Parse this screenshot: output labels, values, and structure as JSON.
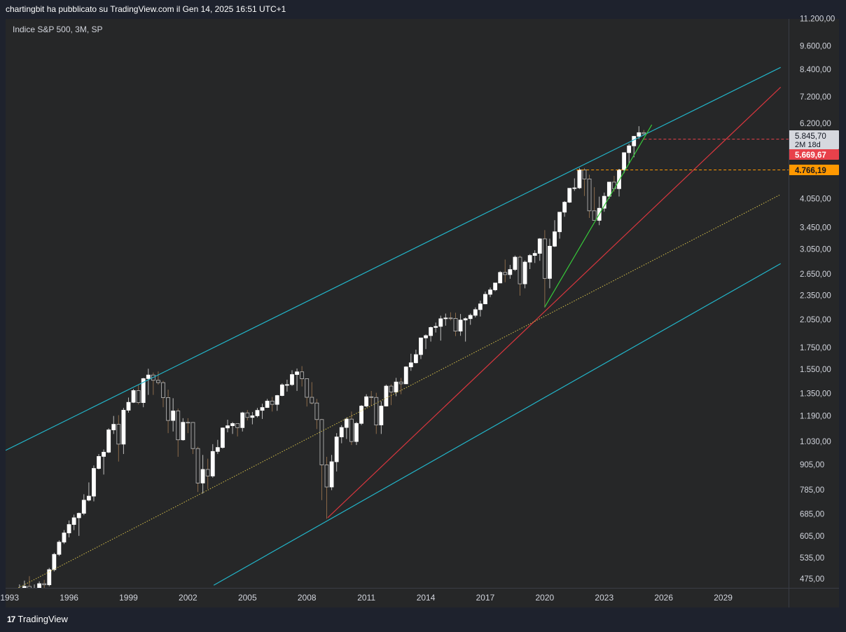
{
  "header": {
    "published_text": "chartingbit ha pubblicato su TradingView.com il Gen 14, 2025 16:51 UTC+1"
  },
  "legend": {
    "symbol_text": "Indice S&P 500, 3M, SP"
  },
  "footer": {
    "logo_text": "TradingView",
    "logo_mark": "17"
  },
  "colors": {
    "background": "#262728",
    "up_candle": "#ffffff",
    "down_candle": "#262728",
    "wick": "#8a6a4a",
    "channel": "#22b5c9",
    "red_trend": "#d9363e",
    "green_trend": "#37c93a",
    "dotted_mid": "#d6c04a"
  },
  "chart_data": {
    "type": "candlestick",
    "title": "Indice S&P 500, 3M, SP",
    "x_tick_labels": [
      "1993",
      "1996",
      "1999",
      "2002",
      "2005",
      "2008",
      "2011",
      "2014",
      "2017",
      "2020",
      "2023",
      "2026",
      "2029"
    ],
    "y_tick_labels": [
      "11.200,00",
      "9.600,00",
      "8.400,00",
      "7.200,00",
      "6.200,00",
      "4.050,00",
      "3.450,00",
      "3.050,00",
      "2.650,00",
      "2.350,00",
      "2.050,00",
      "1.750,00",
      "1.550,00",
      "1.350,00",
      "1.190,00",
      "1.030,00",
      "905,00",
      "785,00",
      "685,00",
      "605,00",
      "535,00",
      "475,00"
    ],
    "y_scale": "log",
    "x_range": [
      1992.8,
      2032.3
    ],
    "price_labels": [
      {
        "value": "5.845,70",
        "sub": "2M 18d",
        "style": "last"
      },
      {
        "value": "5.669,67",
        "style": "red"
      },
      {
        "value": "4.766,19",
        "style": "orange"
      }
    ],
    "horizontal_levels": [
      {
        "price": 5669.67,
        "color": "red",
        "style": "dashed"
      },
      {
        "price": 4766.19,
        "color": "orange",
        "style": "dashed"
      }
    ],
    "trend_lines": [
      {
        "name": "",
        "color": "cyan",
        "p1": [
          1992.8,
          980
        ],
        "p2": [
          2031.9,
          8500
        ]
      },
      {
        "name": "",
        "color": "cyan",
        "p1": [
          2003.3,
          458
        ],
        "p2": [
          2031.9,
          2810
        ]
      },
      {
        "name": "",
        "color": "red",
        "p1": [
          2009.05,
          670
        ],
        "p2": [
          2031.9,
          7600
        ]
      },
      {
        "name": "",
        "color": "green",
        "p1": [
          2020.0,
          2200
        ],
        "p2": [
          2025.4,
          6150
        ]
      },
      {
        "name": "",
        "color": "dotted-yellow",
        "p1": [
          1993.0,
          440
        ],
        "p2": [
          2031.9,
          4150
        ]
      }
    ],
    "series": [
      {
        "t": 1993.5,
        "o": 440,
        "h": 460,
        "l": 436,
        "c": 448
      },
      {
        "t": 1993.75,
        "o": 448,
        "h": 470,
        "l": 445,
        "c": 455
      },
      {
        "t": 1994.0,
        "o": 455,
        "h": 482,
        "l": 435,
        "c": 438
      },
      {
        "t": 1994.25,
        "o": 438,
        "h": 460,
        "l": 436,
        "c": 445
      },
      {
        "t": 1994.5,
        "o": 445,
        "h": 468,
        "l": 440,
        "c": 462
      },
      {
        "t": 1994.75,
        "o": 462,
        "h": 472,
        "l": 445,
        "c": 459
      },
      {
        "t": 1995.0,
        "o": 459,
        "h": 505,
        "l": 455,
        "c": 500
      },
      {
        "t": 1995.25,
        "o": 500,
        "h": 550,
        "l": 495,
        "c": 545
      },
      {
        "t": 1995.5,
        "o": 545,
        "h": 590,
        "l": 540,
        "c": 584
      },
      {
        "t": 1995.75,
        "o": 584,
        "h": 625,
        "l": 578,
        "c": 615
      },
      {
        "t": 1996.0,
        "o": 615,
        "h": 660,
        "l": 600,
        "c": 645
      },
      {
        "t": 1996.25,
        "o": 645,
        "h": 682,
        "l": 625,
        "c": 670
      },
      {
        "t": 1996.5,
        "o": 670,
        "h": 690,
        "l": 605,
        "c": 687
      },
      {
        "t": 1996.75,
        "o": 687,
        "h": 765,
        "l": 680,
        "c": 740
      },
      {
        "t": 1997.0,
        "o": 740,
        "h": 818,
        "l": 735,
        "c": 757
      },
      {
        "t": 1997.25,
        "o": 757,
        "h": 900,
        "l": 735,
        "c": 885
      },
      {
        "t": 1997.5,
        "o": 885,
        "h": 960,
        "l": 880,
        "c": 947
      },
      {
        "t": 1997.75,
        "o": 947,
        "h": 985,
        "l": 855,
        "c": 970
      },
      {
        "t": 1998.0,
        "o": 970,
        "h": 1110,
        "l": 965,
        "c": 1100
      },
      {
        "t": 1998.25,
        "o": 1100,
        "h": 1190,
        "l": 1075,
        "c": 1135
      },
      {
        "t": 1998.5,
        "o": 1135,
        "h": 1195,
        "l": 920,
        "c": 1015
      },
      {
        "t": 1998.75,
        "o": 1015,
        "h": 1245,
        "l": 960,
        "c": 1229
      },
      {
        "t": 1999.0,
        "o": 1229,
        "h": 1320,
        "l": 1212,
        "c": 1285
      },
      {
        "t": 1999.25,
        "o": 1285,
        "h": 1385,
        "l": 1280,
        "c": 1373
      },
      {
        "t": 1999.5,
        "o": 1373,
        "h": 1420,
        "l": 1270,
        "c": 1283
      },
      {
        "t": 1999.75,
        "o": 1283,
        "h": 1475,
        "l": 1250,
        "c": 1469
      },
      {
        "t": 2000.0,
        "o": 1469,
        "h": 1553,
        "l": 1340,
        "c": 1499
      },
      {
        "t": 2000.25,
        "o": 1499,
        "h": 1520,
        "l": 1340,
        "c": 1455
      },
      {
        "t": 2000.5,
        "o": 1455,
        "h": 1530,
        "l": 1420,
        "c": 1436
      },
      {
        "t": 2000.75,
        "o": 1436,
        "h": 1450,
        "l": 1250,
        "c": 1320
      },
      {
        "t": 2001.0,
        "o": 1320,
        "h": 1380,
        "l": 1080,
        "c": 1160
      },
      {
        "t": 2001.25,
        "o": 1160,
        "h": 1315,
        "l": 1090,
        "c": 1224
      },
      {
        "t": 2001.5,
        "o": 1224,
        "h": 1240,
        "l": 945,
        "c": 1040
      },
      {
        "t": 2001.75,
        "o": 1040,
        "h": 1175,
        "l": 1035,
        "c": 1148
      },
      {
        "t": 2002.0,
        "o": 1148,
        "h": 1175,
        "l": 1080,
        "c": 1147
      },
      {
        "t": 2002.25,
        "o": 1147,
        "h": 1150,
        "l": 960,
        "c": 990
      },
      {
        "t": 2002.5,
        "o": 990,
        "h": 1000,
        "l": 775,
        "c": 815
      },
      {
        "t": 2002.75,
        "o": 815,
        "h": 955,
        "l": 768,
        "c": 880
      },
      {
        "t": 2003.0,
        "o": 880,
        "h": 935,
        "l": 788,
        "c": 848
      },
      {
        "t": 2003.25,
        "o": 848,
        "h": 1015,
        "l": 840,
        "c": 974
      },
      {
        "t": 2003.5,
        "o": 974,
        "h": 1040,
        "l": 960,
        "c": 996
      },
      {
        "t": 2003.75,
        "o": 996,
        "h": 1115,
        "l": 990,
        "c": 1112
      },
      {
        "t": 2004.0,
        "o": 1112,
        "h": 1165,
        "l": 1085,
        "c": 1126
      },
      {
        "t": 2004.25,
        "o": 1126,
        "h": 1150,
        "l": 1075,
        "c": 1140
      },
      {
        "t": 2004.5,
        "o": 1140,
        "h": 1140,
        "l": 1060,
        "c": 1114
      },
      {
        "t": 2004.75,
        "o": 1114,
        "h": 1218,
        "l": 1090,
        "c": 1211
      },
      {
        "t": 2005.0,
        "o": 1211,
        "h": 1230,
        "l": 1160,
        "c": 1180
      },
      {
        "t": 2005.25,
        "o": 1180,
        "h": 1217,
        "l": 1135,
        "c": 1191
      },
      {
        "t": 2005.5,
        "o": 1191,
        "h": 1245,
        "l": 1180,
        "c": 1228
      },
      {
        "t": 2005.75,
        "o": 1228,
        "h": 1275,
        "l": 1170,
        "c": 1248
      },
      {
        "t": 2006.0,
        "o": 1248,
        "h": 1310,
        "l": 1245,
        "c": 1294
      },
      {
        "t": 2006.25,
        "o": 1294,
        "h": 1325,
        "l": 1220,
        "c": 1270
      },
      {
        "t": 2006.5,
        "o": 1270,
        "h": 1340,
        "l": 1225,
        "c": 1335
      },
      {
        "t": 2006.75,
        "o": 1335,
        "h": 1430,
        "l": 1330,
        "c": 1418
      },
      {
        "t": 2007.0,
        "o": 1418,
        "h": 1460,
        "l": 1365,
        "c": 1420
      },
      {
        "t": 2007.25,
        "o": 1420,
        "h": 1540,
        "l": 1410,
        "c": 1503
      },
      {
        "t": 2007.5,
        "o": 1503,
        "h": 1555,
        "l": 1370,
        "c": 1526
      },
      {
        "t": 2007.75,
        "o": 1526,
        "h": 1576,
        "l": 1405,
        "c": 1468
      },
      {
        "t": 2008.0,
        "o": 1468,
        "h": 1470,
        "l": 1255,
        "c": 1322
      },
      {
        "t": 2008.25,
        "o": 1322,
        "h": 1440,
        "l": 1270,
        "c": 1280
      },
      {
        "t": 2008.5,
        "o": 1280,
        "h": 1310,
        "l": 1105,
        "c": 1166
      },
      {
        "t": 2008.75,
        "o": 1166,
        "h": 1170,
        "l": 740,
        "c": 903
      },
      {
        "t": 2009.0,
        "o": 903,
        "h": 945,
        "l": 666,
        "c": 797
      },
      {
        "t": 2009.25,
        "o": 797,
        "h": 955,
        "l": 783,
        "c": 919
      },
      {
        "t": 2009.5,
        "o": 919,
        "h": 1080,
        "l": 870,
        "c": 1057
      },
      {
        "t": 2009.75,
        "o": 1057,
        "h": 1130,
        "l": 1020,
        "c": 1115
      },
      {
        "t": 2010.0,
        "o": 1115,
        "h": 1180,
        "l": 1045,
        "c": 1169
      },
      {
        "t": 2010.25,
        "o": 1169,
        "h": 1220,
        "l": 1010,
        "c": 1030
      },
      {
        "t": 2010.5,
        "o": 1030,
        "h": 1150,
        "l": 1010,
        "c": 1141
      },
      {
        "t": 2010.75,
        "o": 1141,
        "h": 1265,
        "l": 1130,
        "c": 1258
      },
      {
        "t": 2011.0,
        "o": 1258,
        "h": 1345,
        "l": 1250,
        "c": 1326
      },
      {
        "t": 2011.25,
        "o": 1326,
        "h": 1370,
        "l": 1260,
        "c": 1321
      },
      {
        "t": 2011.5,
        "o": 1321,
        "h": 1356,
        "l": 1075,
        "c": 1131
      },
      {
        "t": 2011.75,
        "o": 1131,
        "h": 1292,
        "l": 1075,
        "c": 1258
      },
      {
        "t": 2012.0,
        "o": 1258,
        "h": 1420,
        "l": 1255,
        "c": 1408
      },
      {
        "t": 2012.25,
        "o": 1408,
        "h": 1422,
        "l": 1265,
        "c": 1362
      },
      {
        "t": 2012.5,
        "o": 1362,
        "h": 1475,
        "l": 1330,
        "c": 1441
      },
      {
        "t": 2012.75,
        "o": 1441,
        "h": 1475,
        "l": 1345,
        "c": 1426
      },
      {
        "t": 2013.0,
        "o": 1426,
        "h": 1575,
        "l": 1425,
        "c": 1569
      },
      {
        "t": 2013.25,
        "o": 1569,
        "h": 1690,
        "l": 1535,
        "c": 1606
      },
      {
        "t": 2013.5,
        "o": 1606,
        "h": 1730,
        "l": 1600,
        "c": 1682
      },
      {
        "t": 2013.75,
        "o": 1682,
        "h": 1850,
        "l": 1640,
        "c": 1848
      },
      {
        "t": 2014.0,
        "o": 1848,
        "h": 1885,
        "l": 1735,
        "c": 1872
      },
      {
        "t": 2014.25,
        "o": 1872,
        "h": 1970,
        "l": 1810,
        "c": 1960
      },
      {
        "t": 2014.5,
        "o": 1960,
        "h": 2015,
        "l": 1905,
        "c": 1972
      },
      {
        "t": 2014.75,
        "o": 1972,
        "h": 2095,
        "l": 1820,
        "c": 2059
      },
      {
        "t": 2015.0,
        "o": 2059,
        "h": 2120,
        "l": 1980,
        "c": 2068
      },
      {
        "t": 2015.25,
        "o": 2068,
        "h": 2135,
        "l": 2040,
        "c": 2063
      },
      {
        "t": 2015.5,
        "o": 2063,
        "h": 2130,
        "l": 1867,
        "c": 1920
      },
      {
        "t": 2015.75,
        "o": 1920,
        "h": 2115,
        "l": 1870,
        "c": 2044
      },
      {
        "t": 2016.0,
        "o": 2044,
        "h": 2075,
        "l": 1810,
        "c": 2060
      },
      {
        "t": 2016.25,
        "o": 2060,
        "h": 2120,
        "l": 1990,
        "c": 2099
      },
      {
        "t": 2016.5,
        "o": 2099,
        "h": 2195,
        "l": 2075,
        "c": 2168
      },
      {
        "t": 2016.75,
        "o": 2168,
        "h": 2280,
        "l": 2085,
        "c": 2239
      },
      {
        "t": 2017.0,
        "o": 2239,
        "h": 2400,
        "l": 2235,
        "c": 2363
      },
      {
        "t": 2017.25,
        "o": 2363,
        "h": 2455,
        "l": 2325,
        "c": 2423
      },
      {
        "t": 2017.5,
        "o": 2423,
        "h": 2520,
        "l": 2405,
        "c": 2519
      },
      {
        "t": 2017.75,
        "o": 2519,
        "h": 2695,
        "l": 2515,
        "c": 2674
      },
      {
        "t": 2018.0,
        "o": 2674,
        "h": 2875,
        "l": 2530,
        "c": 2641
      },
      {
        "t": 2018.25,
        "o": 2641,
        "h": 2790,
        "l": 2580,
        "c": 2718
      },
      {
        "t": 2018.5,
        "o": 2718,
        "h": 2940,
        "l": 2695,
        "c": 2914
      },
      {
        "t": 2018.75,
        "o": 2914,
        "h": 2940,
        "l": 2345,
        "c": 2507
      },
      {
        "t": 2019.0,
        "o": 2507,
        "h": 2860,
        "l": 2445,
        "c": 2834
      },
      {
        "t": 2019.25,
        "o": 2834,
        "h": 2965,
        "l": 2725,
        "c": 2942
      },
      {
        "t": 2019.5,
        "o": 2942,
        "h": 3030,
        "l": 2820,
        "c": 2977
      },
      {
        "t": 2019.75,
        "o": 2977,
        "h": 3245,
        "l": 2855,
        "c": 3231
      },
      {
        "t": 2020.0,
        "o": 3231,
        "h": 3395,
        "l": 2192,
        "c": 2585
      },
      {
        "t": 2020.25,
        "o": 2585,
        "h": 3235,
        "l": 2445,
        "c": 3100
      },
      {
        "t": 2020.5,
        "o": 3100,
        "h": 3590,
        "l": 3085,
        "c": 3363
      },
      {
        "t": 2020.75,
        "o": 3363,
        "h": 3760,
        "l": 3235,
        "c": 3756
      },
      {
        "t": 2021.0,
        "o": 3756,
        "h": 4000,
        "l": 3660,
        "c": 3973
      },
      {
        "t": 2021.25,
        "o": 3973,
        "h": 4300,
        "l": 3955,
        "c": 4298
      },
      {
        "t": 2021.5,
        "o": 4298,
        "h": 4545,
        "l": 4235,
        "c": 4308
      },
      {
        "t": 2021.75,
        "o": 4308,
        "h": 4818,
        "l": 4280,
        "c": 4766
      },
      {
        "t": 2022.0,
        "o": 4766,
        "h": 4818,
        "l": 4115,
        "c": 4530
      },
      {
        "t": 2022.25,
        "o": 4530,
        "h": 4640,
        "l": 3636,
        "c": 3785
      },
      {
        "t": 2022.5,
        "o": 3785,
        "h": 4325,
        "l": 3585,
        "c": 3586
      },
      {
        "t": 2022.75,
        "o": 3586,
        "h": 4100,
        "l": 3491,
        "c": 3840
      },
      {
        "t": 2023.0,
        "o": 3840,
        "h": 4195,
        "l": 3765,
        "c": 4109
      },
      {
        "t": 2023.25,
        "o": 4109,
        "h": 4450,
        "l": 4050,
        "c": 4450
      },
      {
        "t": 2023.5,
        "o": 4450,
        "h": 4610,
        "l": 4215,
        "c": 4288
      },
      {
        "t": 2023.75,
        "o": 4288,
        "h": 4795,
        "l": 4103,
        "c": 4770
      },
      {
        "t": 2024.0,
        "o": 4770,
        "h": 5265,
        "l": 4680,
        "c": 5254
      },
      {
        "t": 2024.25,
        "o": 5254,
        "h": 5525,
        "l": 4950,
        "c": 5460
      },
      {
        "t": 2024.5,
        "o": 5460,
        "h": 5768,
        "l": 5120,
        "c": 5762
      },
      {
        "t": 2024.75,
        "o": 5762,
        "h": 6100,
        "l": 5670,
        "c": 5882
      },
      {
        "t": 2025.0,
        "o": 5882,
        "h": 5970,
        "l": 5775,
        "c": 5845
      }
    ]
  }
}
